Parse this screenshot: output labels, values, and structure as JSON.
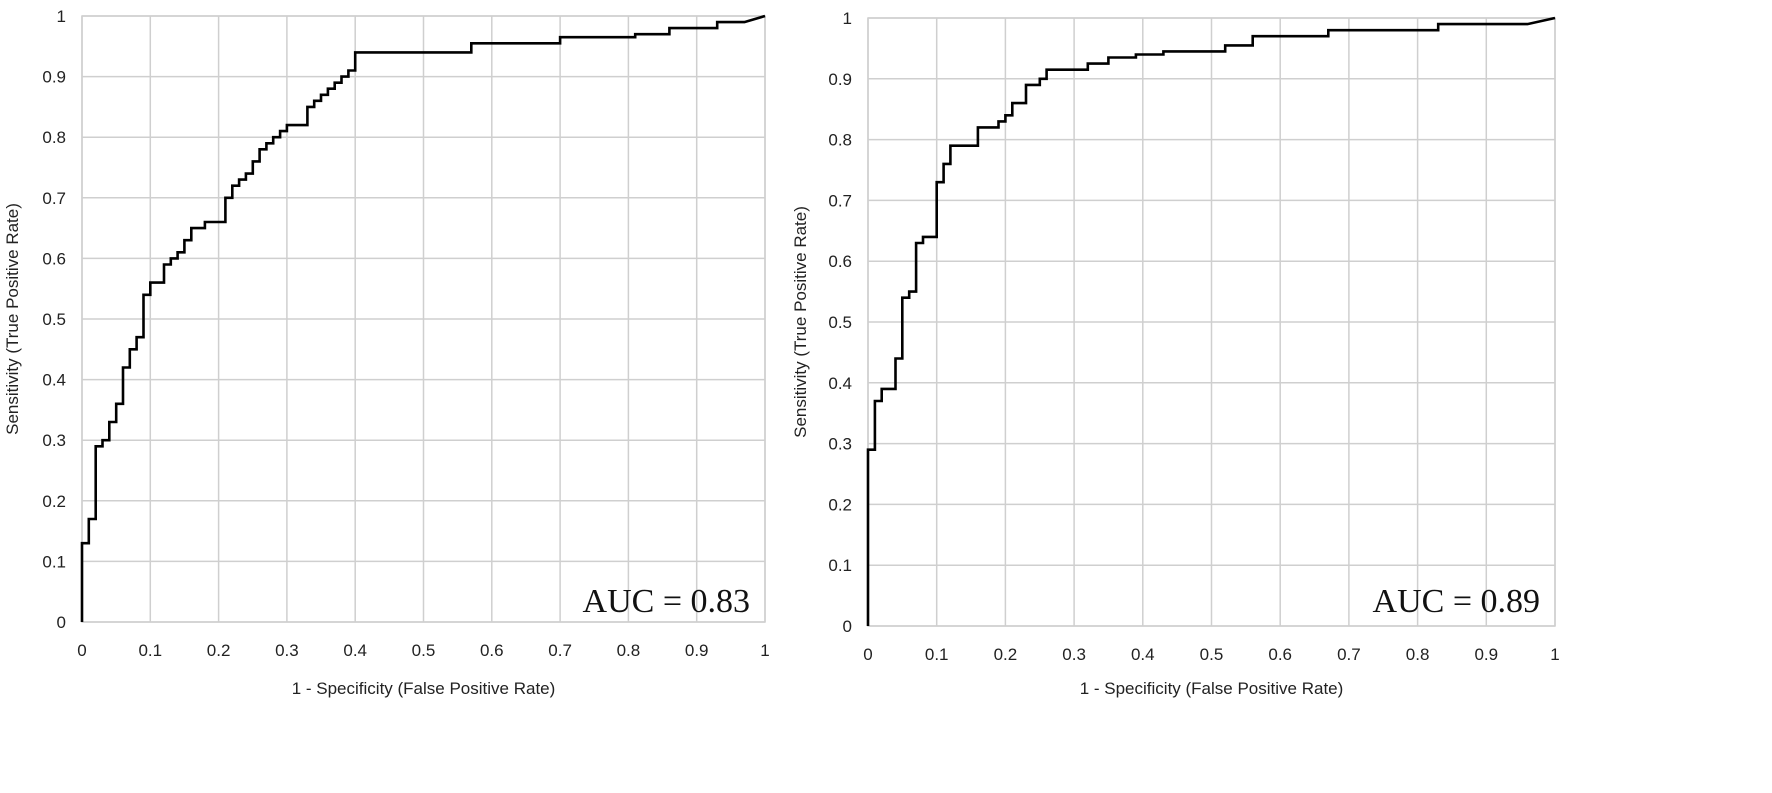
{
  "chart_data": [
    {
      "type": "line",
      "xlabel": "1 - Specificity (False Positive Rate)",
      "ylabel": "Sensitivity (True Positive Rate)",
      "xlim": [
        0,
        1
      ],
      "ylim": [
        0,
        1
      ],
      "xticks": [
        "0",
        "0.1",
        "0.2",
        "0.3",
        "0.4",
        "0.5",
        "0.6",
        "0.7",
        "0.8",
        "0.9",
        "1"
      ],
      "yticks": [
        "0",
        "0.1",
        "0.2",
        "0.3",
        "0.4",
        "0.5",
        "0.6",
        "0.7",
        "0.8",
        "0.9",
        "1"
      ],
      "grid": true,
      "annotation": "AUC = 0.83",
      "series": [
        {
          "x": [
            0,
            0,
            0.01,
            0.01,
            0.02,
            0.02,
            0.03,
            0.03,
            0.04,
            0.04,
            0.05,
            0.05,
            0.06,
            0.06,
            0.07,
            0.07,
            0.08,
            0.08,
            0.09,
            0.09,
            0.1,
            0.1,
            0.12,
            0.12,
            0.13,
            0.13,
            0.14,
            0.14,
            0.15,
            0.15,
            0.16,
            0.16,
            0.18,
            0.18,
            0.21,
            0.21,
            0.22,
            0.22,
            0.23,
            0.23,
            0.24,
            0.24,
            0.25,
            0.25,
            0.26,
            0.26,
            0.27,
            0.27,
            0.28,
            0.28,
            0.29,
            0.29,
            0.3,
            0.3,
            0.31,
            0.31,
            0.33,
            0.33,
            0.34,
            0.34,
            0.35,
            0.35,
            0.36,
            0.36,
            0.37,
            0.37,
            0.38,
            0.38,
            0.39,
            0.39,
            0.4,
            0.4,
            0.45,
            0.45,
            0.57,
            0.57,
            0.7,
            0.7,
            0.81,
            0.81,
            0.86,
            0.86,
            0.93,
            0.93,
            0.97,
            1.0
          ],
          "y": [
            0,
            0.13,
            0.13,
            0.17,
            0.17,
            0.29,
            0.29,
            0.3,
            0.3,
            0.33,
            0.33,
            0.36,
            0.36,
            0.42,
            0.42,
            0.45,
            0.45,
            0.47,
            0.47,
            0.54,
            0.54,
            0.56,
            0.56,
            0.59,
            0.59,
            0.6,
            0.6,
            0.61,
            0.61,
            0.63,
            0.63,
            0.65,
            0.65,
            0.66,
            0.66,
            0.7,
            0.7,
            0.72,
            0.72,
            0.73,
            0.73,
            0.74,
            0.74,
            0.76,
            0.76,
            0.78,
            0.78,
            0.79,
            0.79,
            0.8,
            0.8,
            0.81,
            0.81,
            0.82,
            0.82,
            0.82,
            0.82,
            0.85,
            0.85,
            0.86,
            0.86,
            0.87,
            0.87,
            0.88,
            0.88,
            0.89,
            0.89,
            0.9,
            0.9,
            0.91,
            0.91,
            0.94,
            0.94,
            0.94,
            0.94,
            0.955,
            0.955,
            0.965,
            0.965,
            0.97,
            0.97,
            0.98,
            0.98,
            0.99,
            0.99,
            1.0
          ]
        }
      ]
    },
    {
      "type": "line",
      "xlabel": "1 - Specificity (False Positive Rate)",
      "ylabel": "Sensitivity (True Positive Rate)",
      "xlim": [
        0,
        1
      ],
      "ylim": [
        0,
        1
      ],
      "xticks": [
        "0",
        "0.1",
        "0.2",
        "0.3",
        "0.4",
        "0.5",
        "0.6",
        "0.7",
        "0.8",
        "0.9",
        "1"
      ],
      "yticks": [
        "0",
        "0.1",
        "0.2",
        "0.3",
        "0.4",
        "0.5",
        "0.6",
        "0.7",
        "0.8",
        "0.9",
        "1"
      ],
      "grid": true,
      "annotation": "AUC = 0.89",
      "series": [
        {
          "x": [
            0,
            0,
            0.01,
            0.01,
            0.02,
            0.02,
            0.04,
            0.04,
            0.05,
            0.05,
            0.06,
            0.06,
            0.07,
            0.07,
            0.08,
            0.08,
            0.1,
            0.1,
            0.11,
            0.11,
            0.12,
            0.12,
            0.16,
            0.16,
            0.19,
            0.19,
            0.2,
            0.2,
            0.21,
            0.21,
            0.23,
            0.23,
            0.25,
            0.25,
            0.26,
            0.26,
            0.32,
            0.32,
            0.35,
            0.35,
            0.39,
            0.39,
            0.43,
            0.43,
            0.52,
            0.52,
            0.56,
            0.56,
            0.67,
            0.67,
            0.83,
            0.83,
            0.86,
            0.86,
            0.96,
            1.0
          ],
          "y": [
            0,
            0.29,
            0.29,
            0.37,
            0.37,
            0.39,
            0.39,
            0.44,
            0.44,
            0.54,
            0.54,
            0.55,
            0.55,
            0.63,
            0.63,
            0.64,
            0.64,
            0.73,
            0.73,
            0.76,
            0.76,
            0.79,
            0.79,
            0.82,
            0.82,
            0.83,
            0.83,
            0.84,
            0.84,
            0.86,
            0.86,
            0.89,
            0.89,
            0.9,
            0.9,
            0.915,
            0.915,
            0.925,
            0.925,
            0.935,
            0.935,
            0.94,
            0.94,
            0.945,
            0.945,
            0.955,
            0.955,
            0.97,
            0.97,
            0.98,
            0.98,
            0.99,
            0.99,
            0.99,
            0.99,
            1.0
          ]
        }
      ]
    }
  ]
}
